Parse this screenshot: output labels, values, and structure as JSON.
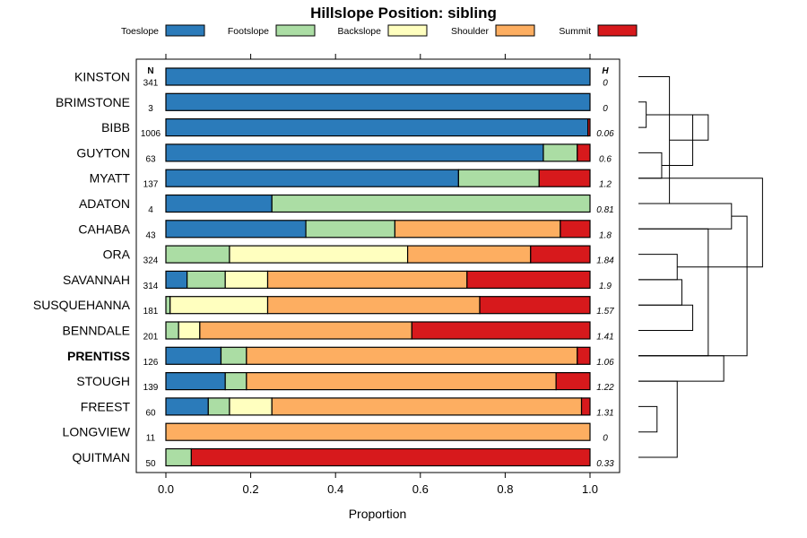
{
  "chart_data": {
    "type": "bar",
    "orientation": "horizontal",
    "stacked": true,
    "title": "Hillslope Position: sibling",
    "xlabel": "Proportion",
    "ylabel": "",
    "xlim": [
      0,
      1
    ],
    "xticks": [
      "0.0",
      "0.2",
      "0.4",
      "0.6",
      "0.8",
      "1.0"
    ],
    "n_header": "N",
    "h_header": "H",
    "highlighted_category": "PRENTISS",
    "legend": [
      {
        "name": "Toeslope",
        "color": "#2b7bba"
      },
      {
        "name": "Footslope",
        "color": "#abdda4"
      },
      {
        "name": "Backslope",
        "color": "#ffffbf"
      },
      {
        "name": "Shoulder",
        "color": "#fdae61"
      },
      {
        "name": "Summit",
        "color": "#d7191c"
      }
    ],
    "categories": [
      "KINSTON",
      "BRIMSTONE",
      "BIBB",
      "GUYTON",
      "MYATT",
      "ADATON",
      "CAHABA",
      "ORA",
      "SAVANNAH",
      "SUSQUEHANNA",
      "BENNDALE",
      "PRENTISS",
      "STOUGH",
      "FREEST",
      "LONGVIEW",
      "QUITMAN"
    ],
    "N": [
      "341",
      "3",
      "1006",
      "63",
      "137",
      "4",
      "43",
      "324",
      "314",
      "181",
      "201",
      "126",
      "139",
      "60",
      "11",
      "50"
    ],
    "H": [
      "0",
      "0",
      "0.06",
      "0.6",
      "1.2",
      "0.81",
      "1.8",
      "1.84",
      "1.9",
      "1.57",
      "1.41",
      "1.06",
      "1.22",
      "1.31",
      "0",
      "0.33"
    ],
    "series": [
      {
        "name": "Toeslope",
        "values": [
          1.0,
          1.0,
          0.995,
          0.89,
          0.69,
          0.25,
          0.33,
          0.0,
          0.05,
          0.0,
          0.0,
          0.13,
          0.14,
          0.1,
          0.0,
          0.0
        ]
      },
      {
        "name": "Footslope",
        "values": [
          0.0,
          0.0,
          0.0,
          0.08,
          0.19,
          0.75,
          0.21,
          0.15,
          0.09,
          0.01,
          0.03,
          0.06,
          0.05,
          0.05,
          0.0,
          0.06
        ]
      },
      {
        "name": "Backslope",
        "values": [
          0.0,
          0.0,
          0.0,
          0.0,
          0.0,
          0.0,
          0.0,
          0.42,
          0.1,
          0.23,
          0.05,
          0.0,
          0.0,
          0.1,
          0.0,
          0.0
        ]
      },
      {
        "name": "Shoulder",
        "values": [
          0.0,
          0.0,
          0.0,
          0.0,
          0.0,
          0.0,
          0.39,
          0.29,
          0.47,
          0.5,
          0.5,
          0.78,
          0.73,
          0.73,
          1.0,
          0.0
        ]
      },
      {
        "name": "Summit",
        "values": [
          0.0,
          0.0,
          0.005,
          0.03,
          0.12,
          0.0,
          0.07,
          0.14,
          0.29,
          0.26,
          0.42,
          0.03,
          0.08,
          0.02,
          0.0,
          0.94
        ]
      }
    ],
    "dendrogram_merges": [
      [
        1,
        2,
        0.05
      ],
      [
        3,
        4,
        0.15
      ],
      [
        0,
        5,
        0.2
      ],
      [
        5,
        6,
        0.6
      ],
      [
        7,
        8,
        0.25
      ],
      [
        8,
        9,
        0.28
      ],
      [
        9,
        10,
        0.35
      ],
      [
        6,
        11,
        0.45
      ],
      [
        11,
        12,
        0.55
      ],
      [
        13,
        14,
        0.12
      ],
      [
        12,
        15,
        0.25
      ],
      [
        16,
        17,
        0.35
      ],
      [
        16,
        18,
        0.45
      ],
      [
        11,
        19,
        0.7
      ],
      [
        4,
        20,
        0.8
      ]
    ]
  }
}
